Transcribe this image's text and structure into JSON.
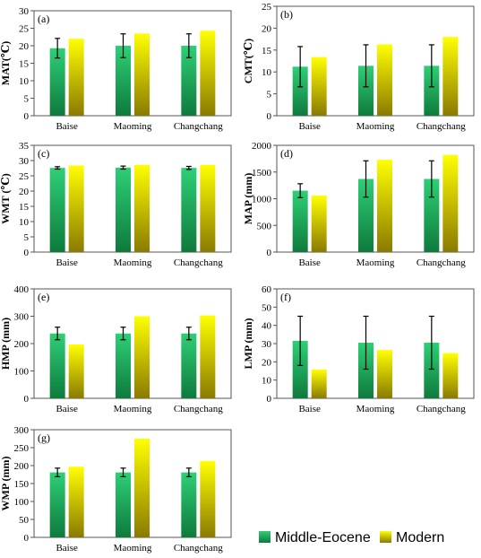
{
  "legend": [
    {
      "name": "Middle-Eocene",
      "color_top": "#2ecf76",
      "color_bottom": "#0e7a3c"
    },
    {
      "name": "Modern",
      "color_top": "#ffff00",
      "color_bottom": "#8a7a00"
    }
  ],
  "chart_data": [
    {
      "type": "bar",
      "panel": "(a)",
      "ylabel": "MAT(℃)",
      "categories": [
        "Baise",
        "Maoming",
        "Changchang"
      ],
      "ylim": [
        0,
        30
      ],
      "yticks": [
        0,
        5,
        10,
        15,
        20,
        25,
        30
      ],
      "series": [
        {
          "name": "Middle-Eocene",
          "values": [
            19.3,
            20.0,
            20.0
          ],
          "error": [
            2.8,
            3.4,
            3.4
          ]
        },
        {
          "name": "Modern",
          "values": [
            22.0,
            23.5,
            24.3
          ]
        }
      ]
    },
    {
      "type": "bar",
      "panel": "(b)",
      "ylabel": "CMT(℃)",
      "categories": [
        "Baise",
        "Maoming",
        "Changchang"
      ],
      "ylim": [
        0,
        25
      ],
      "yticks": [
        0,
        5,
        10,
        15,
        20,
        25
      ],
      "series": [
        {
          "name": "Middle-Eocene",
          "values": [
            11.2,
            11.4,
            11.4
          ],
          "error": [
            4.6,
            4.8,
            4.8
          ]
        },
        {
          "name": "Modern",
          "values": [
            13.4,
            16.3,
            18.0
          ]
        }
      ]
    },
    {
      "type": "bar",
      "panel": "(c)",
      "ylabel": "WMT (℃)",
      "categories": [
        "Baise",
        "Maoming",
        "Changchang"
      ],
      "ylim": [
        0,
        35
      ],
      "yticks": [
        0,
        5,
        10,
        15,
        20,
        25,
        30,
        35
      ],
      "series": [
        {
          "name": "Middle-Eocene",
          "values": [
            27.6,
            27.7,
            27.6
          ],
          "error": [
            0.4,
            0.5,
            0.5
          ]
        },
        {
          "name": "Modern",
          "values": [
            28.4,
            28.6,
            28.6
          ]
        }
      ]
    },
    {
      "type": "bar",
      "panel": "(d)",
      "ylabel": "MAP (mm)",
      "categories": [
        "Baise",
        "Maoming",
        "Changchang"
      ],
      "ylim": [
        0,
        2000
      ],
      "yticks": [
        0,
        500,
        1000,
        1500,
        2000
      ],
      "series": [
        {
          "name": "Middle-Eocene",
          "values": [
            1150,
            1370,
            1370
          ],
          "error": [
            130,
            340,
            340
          ]
        },
        {
          "name": "Modern",
          "values": [
            1060,
            1730,
            1820
          ]
        }
      ]
    },
    {
      "type": "bar",
      "panel": "(e)",
      "ylabel": "HMP (mm)",
      "categories": [
        "Baise",
        "Maoming",
        "Changchang"
      ],
      "ylim": [
        0,
        400
      ],
      "yticks": [
        0,
        100,
        200,
        300,
        400
      ],
      "series": [
        {
          "name": "Middle-Eocene",
          "values": [
            237,
            237,
            237
          ],
          "error": [
            23,
            23,
            23
          ]
        },
        {
          "name": "Modern",
          "values": [
            197,
            300,
            303
          ]
        }
      ]
    },
    {
      "type": "bar",
      "panel": "(f)",
      "ylabel": "LMP (mm)",
      "categories": [
        "Baise",
        "Maoming",
        "Changchang"
      ],
      "ylim": [
        0,
        60
      ],
      "yticks": [
        0,
        10,
        20,
        30,
        40,
        50,
        60
      ],
      "series": [
        {
          "name": "Middle-Eocene",
          "values": [
            31.5,
            30.5,
            30.5
          ],
          "error": [
            13.5,
            14.5,
            14.5
          ]
        },
        {
          "name": "Modern",
          "values": [
            15.8,
            26.5,
            24.8
          ]
        }
      ]
    },
    {
      "type": "bar",
      "panel": "(g)",
      "ylabel": "WMP (mm)",
      "categories": [
        "Baise",
        "Maoming",
        "Changchang"
      ],
      "ylim": [
        0,
        300
      ],
      "yticks": [
        0,
        50,
        100,
        150,
        200,
        250,
        300
      ],
      "series": [
        {
          "name": "Middle-Eocene",
          "values": [
            181,
            181,
            181
          ],
          "error": [
            12,
            12,
            12
          ]
        },
        {
          "name": "Modern",
          "values": [
            197,
            275,
            213
          ]
        }
      ]
    }
  ]
}
